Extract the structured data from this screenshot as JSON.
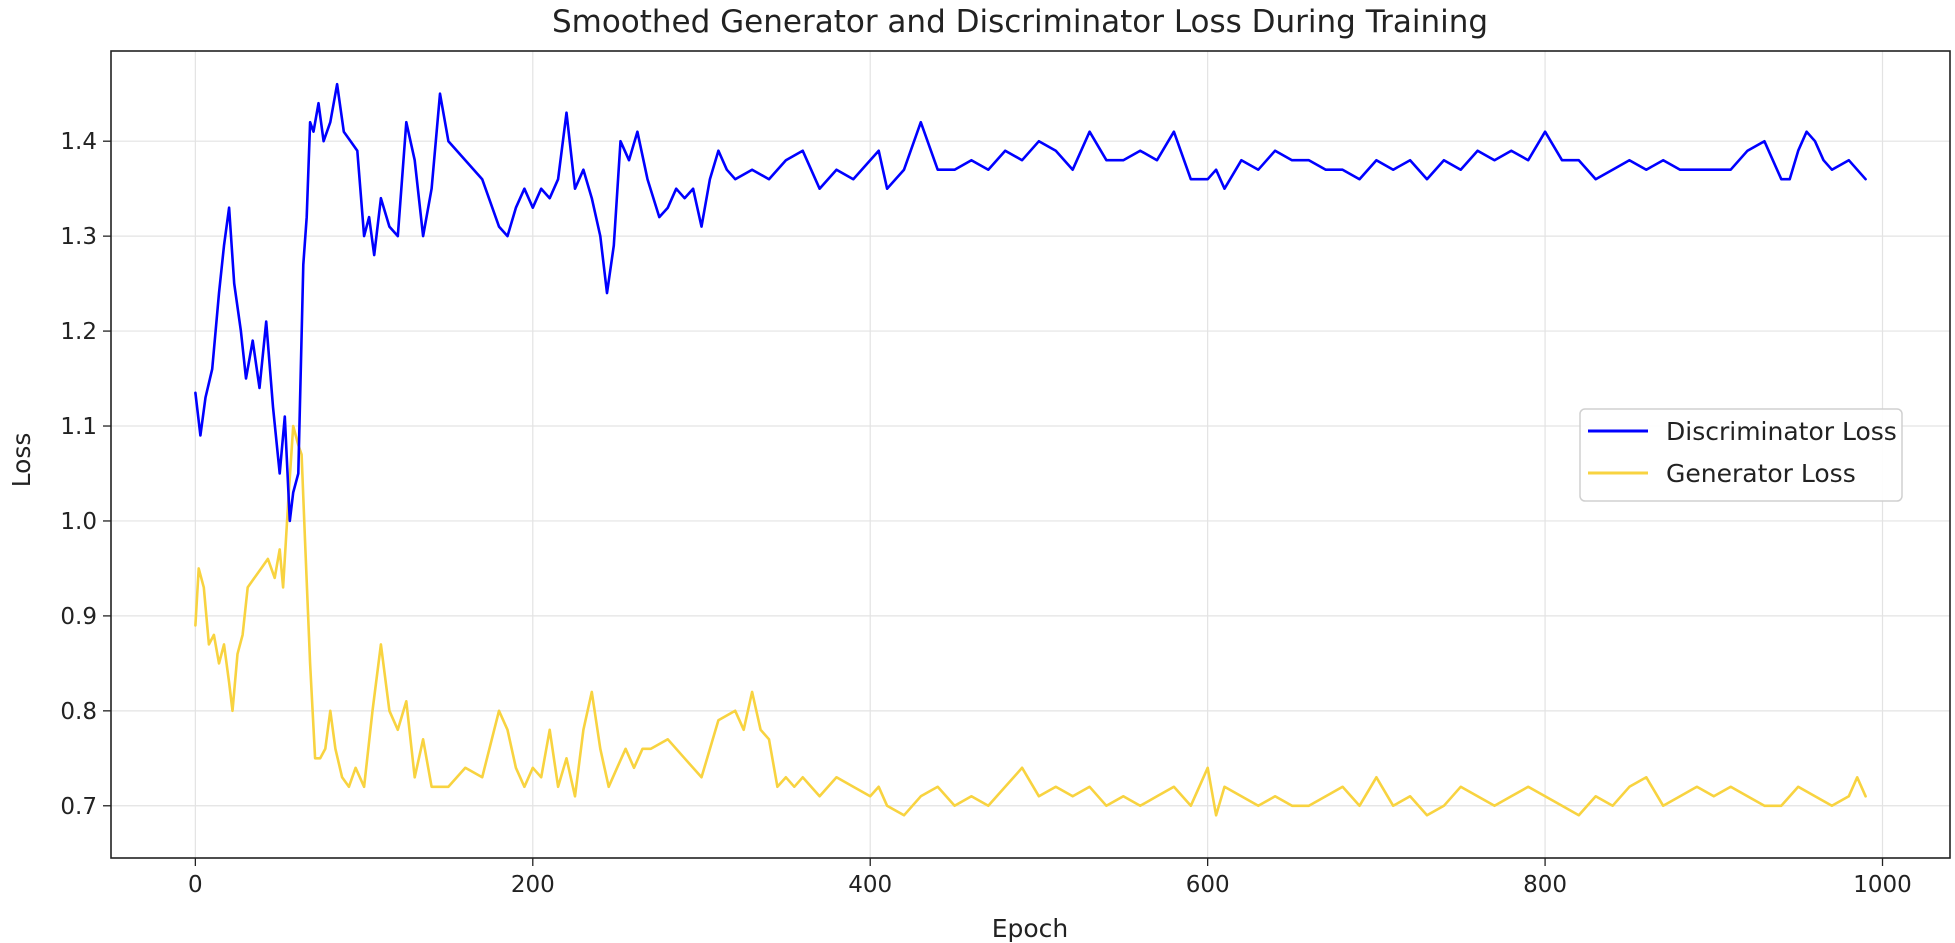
{
  "chart_data": {
    "type": "line",
    "title": "Smoothed Generator and Discriminator Loss During Training",
    "xlabel": "Epoch",
    "ylabel": "Loss",
    "xlim": [
      -50,
      1040
    ],
    "ylim": [
      0.645,
      1.495
    ],
    "xticks": [
      0,
      200,
      400,
      600,
      800,
      1000
    ],
    "yticks": [
      0.7,
      0.8,
      0.9,
      1.0,
      1.1,
      1.2,
      1.3,
      1.4
    ],
    "grid": true,
    "legend_position": "center-right",
    "series": [
      {
        "name": "Discriminator Loss",
        "color": "#0000ff",
        "x": [
          0,
          3,
          6,
          10,
          14,
          17,
          20,
          23,
          27,
          30,
          34,
          38,
          42,
          46,
          50,
          53,
          56,
          58,
          61,
          64,
          66,
          68,
          70,
          73,
          76,
          80,
          84,
          88,
          92,
          96,
          100,
          103,
          106,
          110,
          115,
          120,
          125,
          130,
          135,
          140,
          145,
          150,
          160,
          170,
          180,
          185,
          190,
          195,
          200,
          205,
          210,
          215,
          220,
          225,
          230,
          235,
          240,
          244,
          248,
          252,
          257,
          262,
          268,
          275,
          280,
          285,
          290,
          295,
          300,
          305,
          310,
          315,
          320,
          330,
          340,
          350,
          360,
          370,
          380,
          390,
          400,
          405,
          410,
          420,
          430,
          440,
          450,
          460,
          470,
          480,
          490,
          500,
          510,
          520,
          530,
          540,
          550,
          560,
          570,
          580,
          590,
          600,
          605,
          610,
          620,
          630,
          640,
          650,
          660,
          670,
          680,
          690,
          700,
          710,
          720,
          730,
          740,
          750,
          760,
          770,
          780,
          790,
          800,
          810,
          820,
          830,
          840,
          850,
          860,
          870,
          880,
          890,
          900,
          910,
          920,
          930,
          940,
          945,
          950,
          955,
          960,
          965,
          970,
          980,
          985,
          990
        ],
        "values": [
          1.135,
          1.09,
          1.13,
          1.16,
          1.24,
          1.29,
          1.33,
          1.25,
          1.2,
          1.15,
          1.19,
          1.14,
          1.21,
          1.12,
          1.05,
          1.11,
          1.0,
          1.03,
          1.05,
          1.27,
          1.32,
          1.42,
          1.41,
          1.44,
          1.4,
          1.42,
          1.46,
          1.41,
          1.4,
          1.39,
          1.3,
          1.32,
          1.28,
          1.34,
          1.31,
          1.3,
          1.42,
          1.38,
          1.3,
          1.35,
          1.45,
          1.4,
          1.38,
          1.36,
          1.31,
          1.3,
          1.33,
          1.35,
          1.33,
          1.35,
          1.34,
          1.36,
          1.43,
          1.35,
          1.37,
          1.34,
          1.3,
          1.24,
          1.29,
          1.4,
          1.38,
          1.41,
          1.36,
          1.32,
          1.33,
          1.35,
          1.34,
          1.35,
          1.31,
          1.36,
          1.39,
          1.37,
          1.36,
          1.37,
          1.36,
          1.38,
          1.39,
          1.35,
          1.37,
          1.36,
          1.38,
          1.39,
          1.35,
          1.37,
          1.42,
          1.37,
          1.37,
          1.38,
          1.37,
          1.39,
          1.38,
          1.4,
          1.39,
          1.37,
          1.41,
          1.38,
          1.38,
          1.39,
          1.38,
          1.41,
          1.36,
          1.36,
          1.37,
          1.35,
          1.38,
          1.37,
          1.39,
          1.38,
          1.38,
          1.37,
          1.37,
          1.36,
          1.38,
          1.37,
          1.38,
          1.36,
          1.38,
          1.37,
          1.39,
          1.38,
          1.39,
          1.38,
          1.41,
          1.38,
          1.38,
          1.36,
          1.37,
          1.38,
          1.37,
          1.38,
          1.37,
          1.37,
          1.37,
          1.37,
          1.39,
          1.4,
          1.36,
          1.36,
          1.39,
          1.41,
          1.4,
          1.38,
          1.37,
          1.38,
          1.37,
          1.36
        ]
      },
      {
        "name": "Generator Loss",
        "color": "#f8d340",
        "x": [
          0,
          2,
          5,
          8,
          11,
          14,
          17,
          20,
          22,
          25,
          28,
          31,
          35,
          39,
          43,
          47,
          50,
          52,
          55,
          58,
          61,
          63,
          65,
          68,
          71,
          74,
          77,
          80,
          83,
          87,
          91,
          95,
          100,
          105,
          110,
          115,
          120,
          125,
          130,
          135,
          140,
          150,
          160,
          170,
          180,
          185,
          190,
          195,
          200,
          205,
          210,
          215,
          220,
          225,
          230,
          235,
          240,
          245,
          250,
          255,
          260,
          265,
          270,
          280,
          290,
          300,
          310,
          320,
          325,
          330,
          335,
          340,
          345,
          350,
          355,
          360,
          370,
          380,
          390,
          400,
          405,
          410,
          420,
          430,
          440,
          450,
          460,
          470,
          480,
          490,
          500,
          510,
          520,
          530,
          540,
          550,
          560,
          570,
          580,
          590,
          600,
          605,
          610,
          620,
          630,
          640,
          650,
          660,
          670,
          680,
          690,
          700,
          710,
          720,
          730,
          740,
          750,
          760,
          770,
          780,
          790,
          800,
          810,
          820,
          830,
          840,
          850,
          860,
          870,
          880,
          890,
          900,
          910,
          920,
          930,
          940,
          950,
          960,
          970,
          980,
          985,
          990
        ],
        "values": [
          0.89,
          0.95,
          0.93,
          0.87,
          0.88,
          0.85,
          0.87,
          0.83,
          0.8,
          0.86,
          0.88,
          0.93,
          0.94,
          0.95,
          0.96,
          0.94,
          0.97,
          0.93,
          1.02,
          1.1,
          1.08,
          1.07,
          0.98,
          0.85,
          0.75,
          0.75,
          0.76,
          0.8,
          0.76,
          0.73,
          0.72,
          0.74,
          0.72,
          0.8,
          0.87,
          0.8,
          0.78,
          0.81,
          0.73,
          0.77,
          0.72,
          0.72,
          0.74,
          0.73,
          0.8,
          0.78,
          0.74,
          0.72,
          0.74,
          0.73,
          0.78,
          0.72,
          0.75,
          0.71,
          0.78,
          0.82,
          0.76,
          0.72,
          0.74,
          0.76,
          0.74,
          0.76,
          0.76,
          0.77,
          0.75,
          0.73,
          0.79,
          0.8,
          0.78,
          0.82,
          0.78,
          0.77,
          0.72,
          0.73,
          0.72,
          0.73,
          0.71,
          0.73,
          0.72,
          0.71,
          0.72,
          0.7,
          0.69,
          0.71,
          0.72,
          0.7,
          0.71,
          0.7,
          0.72,
          0.74,
          0.71,
          0.72,
          0.71,
          0.72,
          0.7,
          0.71,
          0.7,
          0.71,
          0.72,
          0.7,
          0.74,
          0.69,
          0.72,
          0.71,
          0.7,
          0.71,
          0.7,
          0.7,
          0.71,
          0.72,
          0.7,
          0.73,
          0.7,
          0.71,
          0.69,
          0.7,
          0.72,
          0.71,
          0.7,
          0.71,
          0.72,
          0.71,
          0.7,
          0.69,
          0.71,
          0.7,
          0.72,
          0.73,
          0.7,
          0.71,
          0.72,
          0.71,
          0.72,
          0.71,
          0.7,
          0.7,
          0.72,
          0.71,
          0.7,
          0.71,
          0.73,
          0.71
        ]
      }
    ]
  }
}
